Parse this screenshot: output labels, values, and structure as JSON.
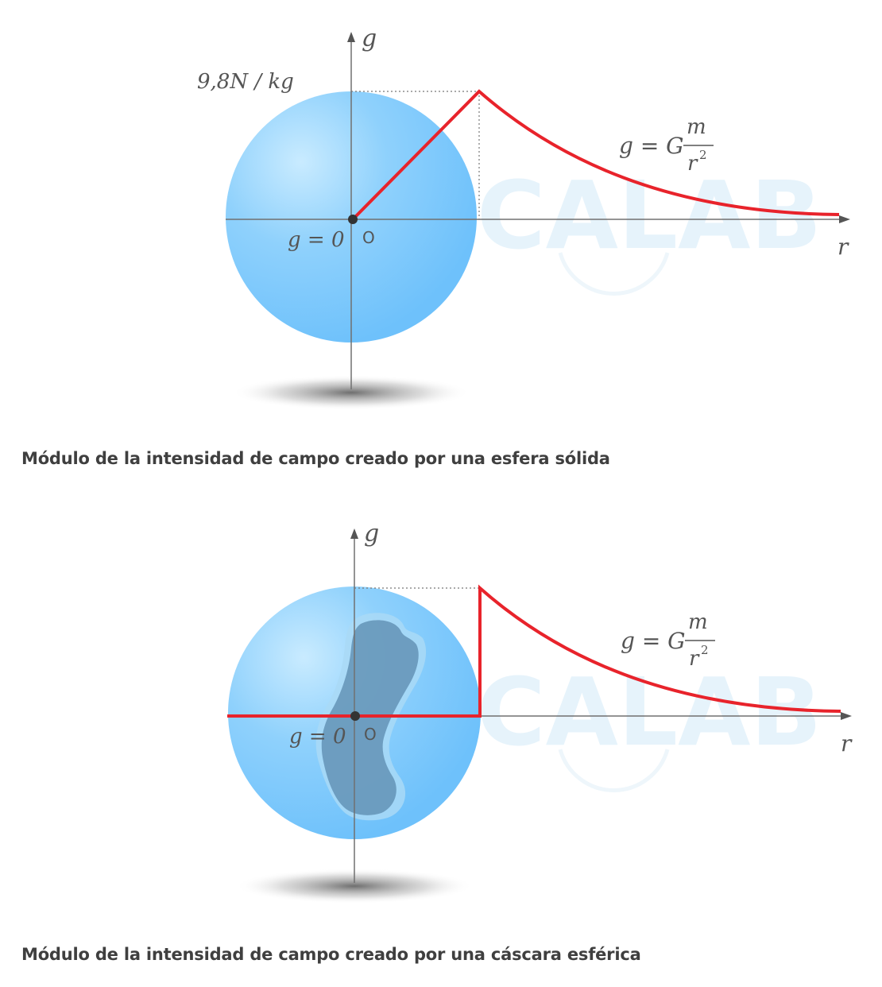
{
  "colors": {
    "curve": "#e8232b",
    "sphere_light": "#c9ebff",
    "sphere_dark": "#6ec1fb",
    "axis": "#707070",
    "caption": "#3f3f3f"
  },
  "watermark": "CALAB",
  "figures": [
    {
      "id": "solid-sphere",
      "axis_y_label": "g",
      "axis_x_label": "r",
      "origin_label": "O",
      "inside_label": "g = 0",
      "value_label": "9,8N / kg",
      "formula": {
        "lhs": "g = G",
        "numerator": "m",
        "denominator": "r",
        "exponent": "2"
      },
      "caption": "Módulo de la intensidad de campo creado por una esfera sólida"
    },
    {
      "id": "spherical-shell",
      "axis_y_label": "g",
      "axis_x_label": "r",
      "origin_label": "O",
      "inside_label": "g = 0",
      "formula": {
        "lhs": "g = G",
        "numerator": "m",
        "denominator": "r",
        "exponent": "2"
      },
      "caption": "Módulo de la intensidad de campo creado por una cáscara esférica"
    }
  ]
}
